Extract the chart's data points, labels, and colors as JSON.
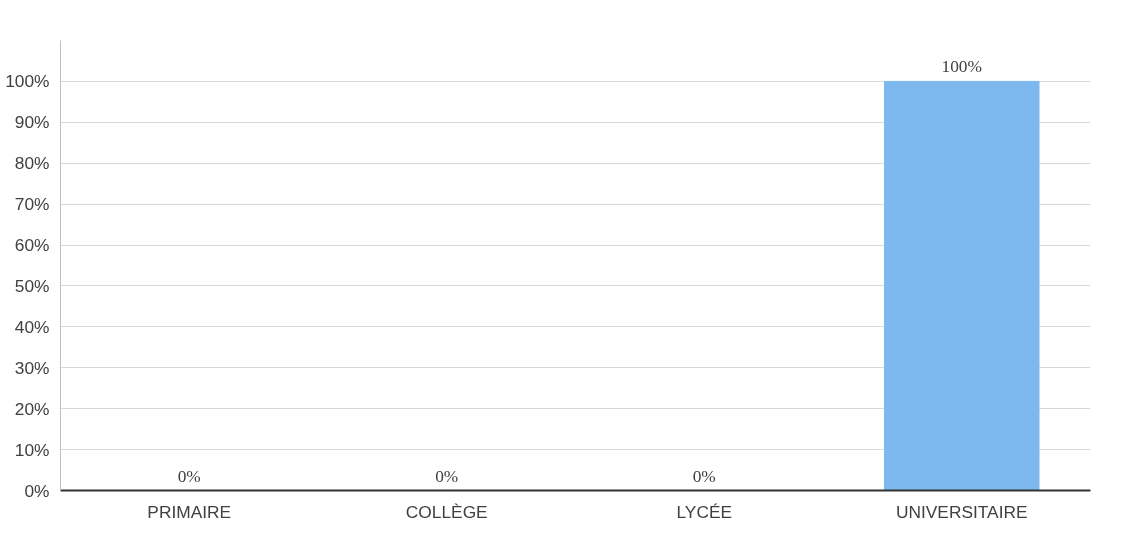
{
  "chart_data": {
    "type": "bar",
    "categories": [
      "PRIMAIRE",
      "COLLÈGE",
      "LYCÉE",
      "UNIVERSITAIRE"
    ],
    "values": [
      0,
      0,
      0,
      100
    ],
    "value_labels": [
      "0%",
      "0%",
      "0%",
      "100%"
    ],
    "color": "#7db9ef",
    "ylim": [
      0,
      110
    ],
    "yticks": [
      {
        "value": 0,
        "label": "0%"
      },
      {
        "value": 10,
        "label": "10%"
      },
      {
        "value": 20,
        "label": "20%"
      },
      {
        "value": 30,
        "label": "30%"
      },
      {
        "value": 40,
        "label": "40%"
      },
      {
        "value": 50,
        "label": "50%"
      },
      {
        "value": 60,
        "label": "60%"
      },
      {
        "value": 70,
        "label": "70%"
      },
      {
        "value": 80,
        "label": "80%"
      },
      {
        "value": 90,
        "label": "90%"
      },
      {
        "value": 100,
        "label": "100%"
      }
    ],
    "grid": "y"
  }
}
